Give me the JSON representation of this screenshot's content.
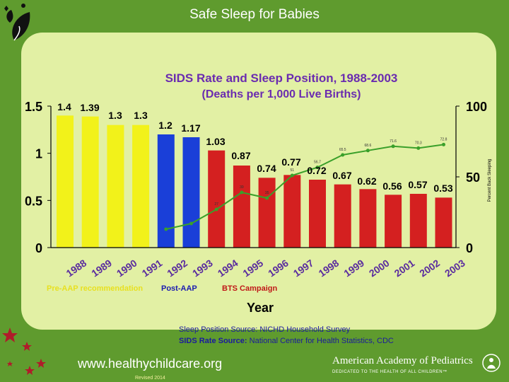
{
  "slide": {
    "title": "Safe Sleep for Babies",
    "url": "www.healthychildcare.org",
    "revised": "Revised 2014",
    "org_name": "American Academy of Pediatrics",
    "org_tagline": "DEDICATED TO THE HEALTH OF ALL CHILDREN™"
  },
  "colors": {
    "background": "#5f9b2e",
    "panel": "#e2f0a4",
    "pre_aap": "#f2f21a",
    "post_aap": "#1a3fd8",
    "bts": "#d42020",
    "line": "#3aa02a",
    "title_purple": "#6a2bb0",
    "label_purple": "#5a2c9e",
    "legend_post": "#1c1cb0",
    "legend_bts": "#c01818"
  },
  "chart_data": {
    "type": "bar",
    "title": "SIDS Rate and Sleep Position, 1988-2003",
    "subtitle": "(Deaths per 1,000 Live Births)",
    "xlabel": "Year",
    "ylabel": "",
    "ylabel_right": "Percent Back Sleeping",
    "ylim": [
      0,
      1.5
    ],
    "yticks": [
      "0",
      "0.5",
      "1",
      "1.5"
    ],
    "ylim_right": [
      0,
      100
    ],
    "yticks_right": [
      "0",
      "50",
      "100"
    ],
    "grid": false,
    "categories": [
      "1988",
      "1989",
      "1990",
      "1991",
      "1992",
      "1993",
      "1994",
      "1995",
      "1996",
      "1997",
      "1998",
      "1999",
      "2000",
      "2001",
      "2002",
      "2003"
    ],
    "values": [
      1.4,
      1.39,
      1.3,
      1.3,
      1.2,
      1.17,
      1.03,
      0.87,
      0.74,
      0.77,
      0.72,
      0.67,
      0.62,
      0.56,
      0.57,
      0.53
    ],
    "value_labels": [
      "1.4",
      "1.39",
      "1.3",
      "1.3",
      "1.2",
      "1.17",
      "1.03",
      "0.87",
      "0.74",
      "0.77",
      "0.72",
      "0.67",
      "0.62",
      "0.56",
      "0.57",
      "0.53"
    ],
    "bar_groups": [
      "pre",
      "pre",
      "pre",
      "pre",
      "post",
      "post",
      "bts",
      "bts",
      "bts",
      "bts",
      "bts",
      "bts",
      "bts",
      "bts",
      "bts",
      "bts"
    ],
    "line_series": {
      "name": "Percent Back Sleeping",
      "start_index": 4,
      "values": [
        13,
        17,
        27,
        39,
        35,
        51,
        56.7,
        65.5,
        68.6,
        71.6,
        70.3,
        72.8
      ],
      "labels": [
        "",
        "",
        "27",
        "39",
        "35",
        "51",
        "56.7",
        "65.5",
        "68.6",
        "71.6",
        "70.3",
        "72.8"
      ]
    },
    "legend": [
      {
        "label": "Pre-AAP recommendation",
        "group": "pre"
      },
      {
        "label": "Post-AAP",
        "group": "post"
      },
      {
        "label": "BTS Campaign",
        "group": "bts"
      }
    ],
    "annotations": [
      "Sleep Position Source:  NICHD Household Survey",
      "SIDS Rate Source:",
      "National Center for Health Statistics, CDC"
    ]
  }
}
